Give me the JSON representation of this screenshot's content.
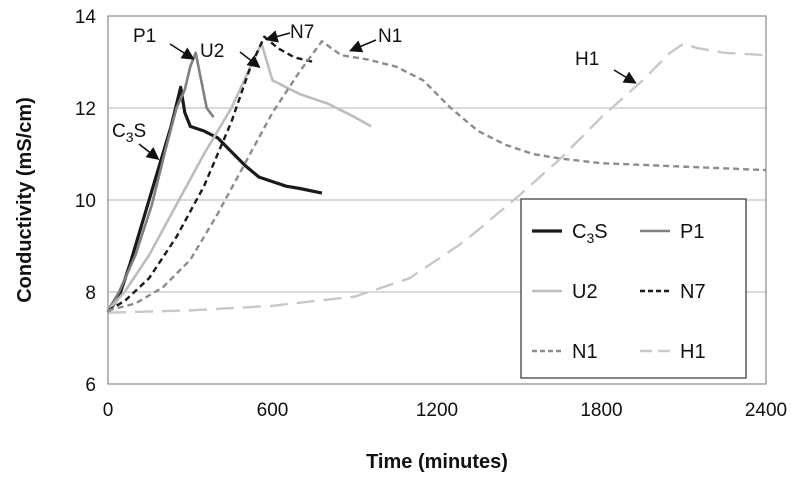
{
  "chart_data": {
    "type": "line",
    "xlabel": "Time (minutes)",
    "ylabel": "Conductivity (mS/cm)",
    "xlim": [
      0,
      2400
    ],
    "ylim": [
      6,
      14
    ],
    "x_ticks": [
      "0",
      "600",
      "1200",
      "1800",
      "2400"
    ],
    "y_ticks": [
      "6",
      "8",
      "10",
      "12",
      "14"
    ],
    "grid": "horizontal",
    "legend_position": "bottom-right",
    "series": [
      {
        "name": "C3S",
        "color": "#1a1a1a",
        "style": "solid-thick",
        "points": [
          [
            0,
            7.55
          ],
          [
            40,
            7.9
          ],
          [
            80,
            8.6
          ],
          [
            130,
            9.6
          ],
          [
            180,
            10.6
          ],
          [
            230,
            11.6
          ],
          [
            265,
            12.45
          ],
          [
            280,
            11.9
          ],
          [
            300,
            11.6
          ],
          [
            350,
            11.5
          ],
          [
            400,
            11.35
          ],
          [
            450,
            11.05
          ],
          [
            500,
            10.75
          ],
          [
            550,
            10.5
          ],
          [
            600,
            10.4
          ],
          [
            650,
            10.3
          ],
          [
            700,
            10.25
          ],
          [
            780,
            10.15
          ]
        ]
      },
      {
        "name": "P1",
        "color": "#808080",
        "style": "solid",
        "points": [
          [
            0,
            7.6
          ],
          [
            40,
            8.0
          ],
          [
            100,
            8.8
          ],
          [
            160,
            9.9
          ],
          [
            210,
            11.1
          ],
          [
            250,
            12.0
          ],
          [
            280,
            12.4
          ],
          [
            300,
            12.9
          ],
          [
            320,
            13.2
          ],
          [
            340,
            12.6
          ],
          [
            360,
            12.0
          ],
          [
            385,
            11.8
          ]
        ]
      },
      {
        "name": "U2",
        "color": "#bdbdbd",
        "style": "solid",
        "points": [
          [
            0,
            7.6
          ],
          [
            60,
            8.0
          ],
          [
            150,
            8.8
          ],
          [
            250,
            9.9
          ],
          [
            350,
            11.0
          ],
          [
            450,
            12.0
          ],
          [
            520,
            12.9
          ],
          [
            560,
            13.4
          ],
          [
            600,
            12.6
          ],
          [
            700,
            12.3
          ],
          [
            800,
            12.1
          ],
          [
            900,
            11.8
          ],
          [
            960,
            11.6
          ]
        ]
      },
      {
        "name": "N7",
        "color": "#1a1a1a",
        "style": "dashed",
        "points": [
          [
            0,
            7.6
          ],
          [
            60,
            7.8
          ],
          [
            150,
            8.3
          ],
          [
            250,
            9.2
          ],
          [
            350,
            10.3
          ],
          [
            450,
            11.7
          ],
          [
            520,
            12.9
          ],
          [
            570,
            13.55
          ],
          [
            620,
            13.3
          ],
          [
            680,
            13.1
          ],
          [
            750,
            13.0
          ]
        ]
      },
      {
        "name": "N1",
        "color": "#8c8c8c",
        "style": "dashed",
        "points": [
          [
            0,
            7.6
          ],
          [
            100,
            7.75
          ],
          [
            200,
            8.1
          ],
          [
            300,
            8.7
          ],
          [
            400,
            9.7
          ],
          [
            500,
            10.8
          ],
          [
            600,
            11.9
          ],
          [
            700,
            12.8
          ],
          [
            780,
            13.45
          ],
          [
            850,
            13.15
          ],
          [
            950,
            13.05
          ],
          [
            1050,
            12.9
          ],
          [
            1150,
            12.6
          ],
          [
            1250,
            12.0
          ],
          [
            1350,
            11.5
          ],
          [
            1450,
            11.2
          ],
          [
            1550,
            11.0
          ],
          [
            1650,
            10.9
          ],
          [
            1800,
            10.8
          ],
          [
            2000,
            10.75
          ],
          [
            2200,
            10.7
          ],
          [
            2400,
            10.65
          ]
        ]
      },
      {
        "name": "H1",
        "color": "#c8c8c8",
        "style": "long-dashed",
        "points": [
          [
            0,
            7.55
          ],
          [
            300,
            7.6
          ],
          [
            600,
            7.7
          ],
          [
            900,
            7.9
          ],
          [
            1100,
            8.3
          ],
          [
            1300,
            9.1
          ],
          [
            1500,
            10.1
          ],
          [
            1650,
            10.9
          ],
          [
            1800,
            11.8
          ],
          [
            1950,
            12.6
          ],
          [
            2050,
            13.2
          ],
          [
            2100,
            13.4
          ],
          [
            2150,
            13.3
          ],
          [
            2250,
            13.2
          ],
          [
            2400,
            13.15
          ]
        ]
      }
    ],
    "annotations": [
      "P1",
      "U2",
      "N7",
      "N1",
      "H1",
      "C3S"
    ],
    "legend": [
      {
        "name": "C3S",
        "color": "#1a1a1a",
        "style": "solid-thick"
      },
      {
        "name": "P1",
        "color": "#808080",
        "style": "solid"
      },
      {
        "name": "U2",
        "color": "#bdbdbd",
        "style": "solid"
      },
      {
        "name": "N7",
        "color": "#1a1a1a",
        "style": "dashed"
      },
      {
        "name": "N1",
        "color": "#8c8c8c",
        "style": "dashed"
      },
      {
        "name": "H1",
        "color": "#c8c8c8",
        "style": "long-dashed"
      }
    ]
  }
}
